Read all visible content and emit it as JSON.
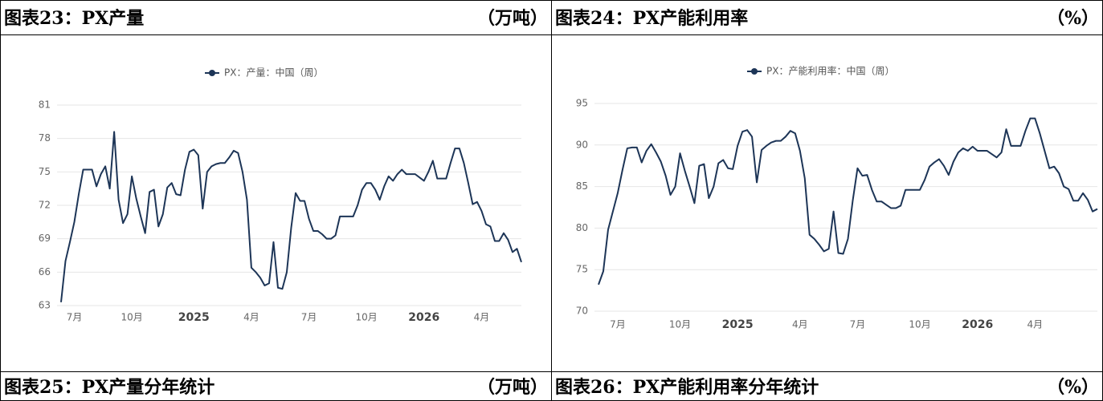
{
  "headers": [
    {
      "title": "图表23：PX产量",
      "unit": "（万吨）"
    },
    {
      "title": "图表24：PX产能利用率",
      "unit": "（%）"
    },
    {
      "title": "图表25：PX产量分年统计",
      "unit": "（万吨）"
    },
    {
      "title": "图表26：PX产能利用率分年统计",
      "unit": "（%）"
    }
  ],
  "chart_data": [
    {
      "type": "line",
      "categories": [
        null,
        null,
        null,
        "7月",
        null,
        null,
        null,
        null,
        null,
        null,
        null,
        null,
        null,
        null,
        null,
        null,
        "10月",
        null,
        null,
        null,
        null,
        null,
        null,
        null,
        null,
        null,
        null,
        null,
        null,
        null,
        "2025",
        null,
        null,
        null,
        null,
        null,
        null,
        null,
        null,
        null,
        null,
        null,
        null,
        "4月",
        null,
        null,
        null,
        null,
        null,
        null,
        null,
        null,
        null,
        null,
        null,
        null,
        "7月",
        null,
        null,
        null,
        null,
        null,
        null,
        null,
        null,
        null,
        null,
        null,
        null,
        "10月",
        null,
        null,
        null,
        null,
        null,
        null,
        null,
        null,
        null,
        null,
        null,
        null,
        "2026",
        null,
        null,
        null,
        null,
        null,
        null,
        null,
        null,
        null,
        null,
        null,
        null,
        "4月",
        null,
        null,
        null,
        null,
        null,
        null,
        null,
        null,
        null
      ],
      "series": [
        {
          "name": "PX：产量：中国（周）",
          "color": "#1d3557",
          "values": [
            63.3,
            67,
            68.7,
            70.5,
            73,
            75.2,
            75.2,
            75.2,
            73.7,
            74.8,
            75.5,
            73.5,
            78.6,
            72.5,
            70.4,
            71.2,
            74.6,
            72.6,
            71,
            69.5,
            73.2,
            73.4,
            70.1,
            71.2,
            73.6,
            74,
            73,
            72.9,
            75.2,
            76.8,
            77,
            76.5,
            71.7,
            75,
            75.5,
            75.7,
            75.8,
            75.8,
            76.3,
            76.9,
            76.7,
            75,
            72.5,
            66.4,
            66,
            65.5,
            64.8,
            65,
            68.7,
            64.6,
            64.5,
            66,
            70,
            73.1,
            72.4,
            72.4,
            70.8,
            69.7,
            69.7,
            69.4,
            69,
            69,
            69.3,
            71,
            71,
            71,
            71,
            72,
            73.4,
            74,
            74,
            73.4,
            72.5,
            73.7,
            74.6,
            74.2,
            74.8,
            75.2,
            74.8,
            74.8,
            74.8,
            74.5,
            74.2,
            75,
            76,
            74.4,
            74.4,
            74.4,
            75.8,
            77.1,
            77.1,
            75.8,
            74,
            72.1,
            72.3,
            71.5,
            70.3,
            70.1,
            68.8,
            68.8,
            69.5,
            68.9,
            67.8,
            68.1,
            66.9
          ]
        }
      ],
      "ylim": [
        63,
        81
      ],
      "yticks": [
        63,
        66,
        69,
        72,
        75,
        78,
        81
      ],
      "grid": true,
      "legend": "top"
    },
    {
      "type": "line",
      "categories": [
        null,
        null,
        null,
        null,
        "7月",
        null,
        null,
        null,
        null,
        null,
        null,
        null,
        null,
        null,
        null,
        null,
        null,
        "10月",
        null,
        null,
        null,
        null,
        null,
        null,
        null,
        null,
        null,
        null,
        null,
        "2025",
        null,
        null,
        null,
        null,
        null,
        null,
        null,
        null,
        null,
        null,
        null,
        null,
        "4月",
        null,
        null,
        null,
        null,
        null,
        null,
        null,
        null,
        null,
        null,
        null,
        "7月",
        null,
        null,
        null,
        null,
        null,
        null,
        null,
        null,
        null,
        null,
        null,
        null,
        "10月",
        null,
        null,
        null,
        null,
        null,
        null,
        null,
        null,
        null,
        null,
        null,
        "2026",
        null,
        null,
        null,
        null,
        null,
        null,
        null,
        null,
        null,
        null,
        null,
        "4月",
        null,
        null,
        null,
        null,
        null,
        null,
        null,
        null,
        null,
        null,
        null,
        null,
        null
      ],
      "series": [
        {
          "name": "PX：产能利用率：中国（周）",
          "color": "#1d3557",
          "values": [
            73.2,
            74.8,
            79.8,
            82,
            84.2,
            87,
            89.6,
            89.7,
            89.7,
            87.9,
            89.3,
            90.1,
            89.1,
            88,
            86.3,
            84,
            85,
            89,
            86.9,
            85,
            83,
            87.5,
            87.7,
            83.6,
            85,
            87.8,
            88.2,
            87.2,
            87.1,
            89.9,
            91.6,
            91.8,
            91,
            85.5,
            89.4,
            89.9,
            90.3,
            90.5,
            90.5,
            91,
            91.7,
            91.4,
            89.3,
            86,
            79.2,
            78.7,
            78,
            77.2,
            77.5,
            82,
            77,
            76.9,
            78.7,
            83.3,
            87.2,
            86.3,
            86.4,
            84.6,
            83.2,
            83.2,
            82.8,
            82.4,
            82.4,
            82.7,
            84.6,
            84.6,
            84.6,
            84.6,
            85.8,
            87.4,
            87.9,
            88.3,
            87.5,
            86.4,
            88,
            89.1,
            89.6,
            89.3,
            89.8,
            89.3,
            89.3,
            89.3,
            88.9,
            88.5,
            89.1,
            91.9,
            89.9,
            89.9,
            89.9,
            91.7,
            93.2,
            93.2,
            91.4,
            89.3,
            87.2,
            87.4,
            86.6,
            85,
            84.7,
            83.3,
            83.3,
            84.2,
            83.4,
            82,
            82.3
          ]
        }
      ],
      "ylim": [
        70,
        95
      ],
      "yticks": [
        70,
        75,
        80,
        85,
        90,
        95
      ],
      "grid": true,
      "legend": "top"
    }
  ]
}
